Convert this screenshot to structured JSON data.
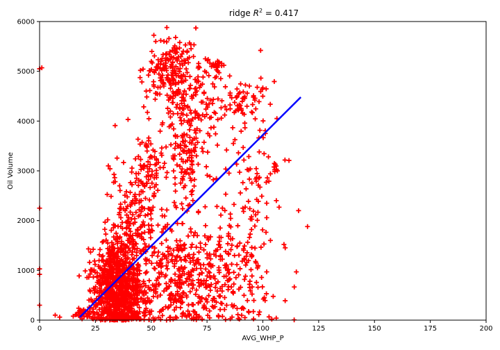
{
  "chart_data": {
    "type": "scatter",
    "title_prefix": "ridge ",
    "title_metric": "R",
    "title_exp": "2",
    "title_suffix": " = 0.417",
    "xlabel": "AVG_WHP_P",
    "ylabel": "Oil Volume",
    "xlim": [
      0,
      200
    ],
    "ylim": [
      0,
      6000
    ],
    "xticks": [
      0,
      25,
      50,
      75,
      100,
      125,
      150,
      175,
      200
    ],
    "yticks": [
      0,
      1000,
      2000,
      3000,
      4000,
      5000,
      6000
    ],
    "grid": false,
    "marker": "+",
    "colors": {
      "points": "#ff0000",
      "fit_line": "#0000ff"
    },
    "fit_line": {
      "x": [
        18,
        117
      ],
      "y": [
        60,
        4480
      ]
    },
    "clusters": [
      {
        "cx": 35,
        "cy": 450,
        "sx": 6,
        "sy": 380,
        "n": 650
      },
      {
        "cx": 33,
        "cy": 1000,
        "sx": 4,
        "sy": 350,
        "n": 200
      },
      {
        "cx": 40,
        "cy": 1800,
        "sx": 4,
        "sy": 600,
        "n": 150
      },
      {
        "cx": 48,
        "cy": 2800,
        "sx": 4,
        "sy": 500,
        "n": 100
      },
      {
        "cx": 58,
        "cy": 5000,
        "sx": 5,
        "sy": 350,
        "n": 160
      },
      {
        "cx": 68,
        "cy": 4300,
        "sx": 6,
        "sy": 600,
        "n": 160
      },
      {
        "cx": 80,
        "cy": 5100,
        "sx": 2,
        "sy": 70,
        "n": 25
      },
      {
        "cx": 90,
        "cy": 4300,
        "sx": 6,
        "sy": 250,
        "n": 70
      },
      {
        "cx": 65,
        "cy": 3300,
        "sx": 6,
        "sy": 500,
        "n": 100
      },
      {
        "cx": 60,
        "cy": 900,
        "sx": 14,
        "sy": 550,
        "n": 450
      },
      {
        "cx": 85,
        "cy": 800,
        "sx": 10,
        "sy": 650,
        "n": 170
      },
      {
        "cx": 95,
        "cy": 2600,
        "sx": 6,
        "sy": 700,
        "n": 60
      },
      {
        "cx": 104,
        "cy": 3000,
        "sx": 4,
        "sy": 150,
        "n": 18
      },
      {
        "cx": 20,
        "cy": 150,
        "sx": 2,
        "sy": 60,
        "n": 35
      }
    ],
    "outliers": [
      [
        0,
        5050
      ],
      [
        1,
        5070
      ],
      [
        0,
        2250
      ],
      [
        0,
        1030
      ],
      [
        0,
        920
      ],
      [
        0,
        300
      ],
      [
        7,
        100
      ],
      [
        9,
        60
      ],
      [
        120,
        1880
      ],
      [
        116,
        2200
      ],
      [
        115,
        970
      ],
      [
        110,
        390
      ],
      [
        104,
        20
      ],
      [
        106,
        40
      ],
      [
        99,
        5420
      ],
      [
        57,
        5880
      ],
      [
        70,
        5870
      ]
    ]
  }
}
